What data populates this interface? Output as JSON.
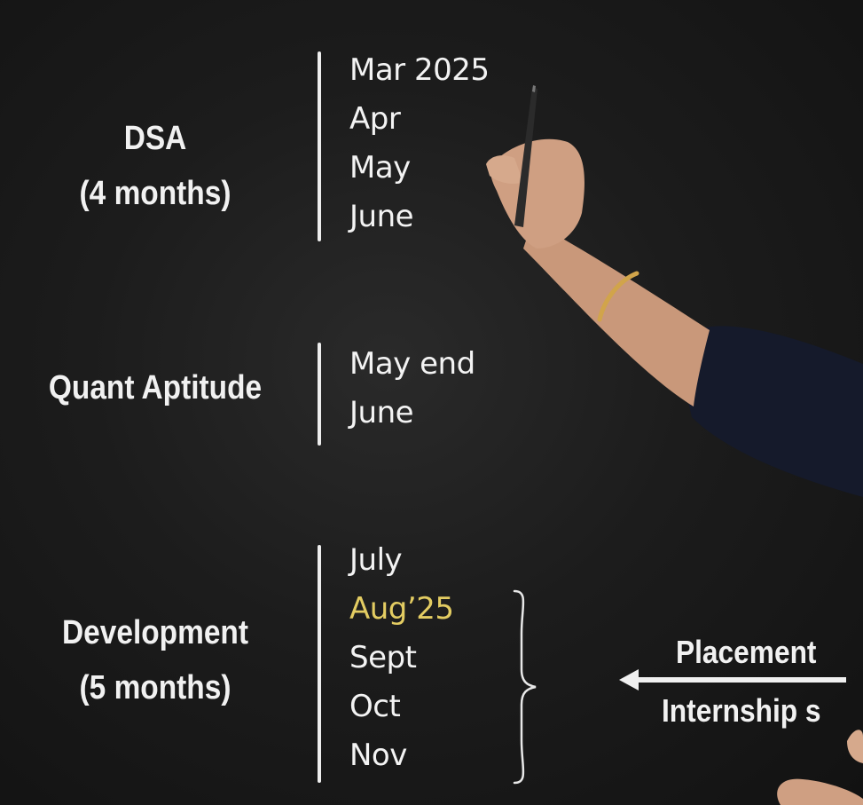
{
  "sections": [
    {
      "topic_lines": [
        "DSA",
        "(4 months)"
      ],
      "months": [
        "Mar 2025",
        "Apr",
        "May",
        "June"
      ]
    },
    {
      "topic_lines": [
        "Quant Aptitude"
      ],
      "months": [
        "May end",
        "June"
      ]
    },
    {
      "topic_lines": [
        "Development",
        "(5 months)"
      ],
      "months": [
        "July",
        "Aug’25",
        "Sept",
        "Oct",
        "Nov"
      ],
      "highlight_index": 1
    }
  ],
  "side_labels": {
    "top": "Placement",
    "bottom": "Internship s"
  },
  "colors": {
    "highlight": "#e3cc62",
    "text": "#f2f2f2",
    "board": "#1c1c1c"
  }
}
